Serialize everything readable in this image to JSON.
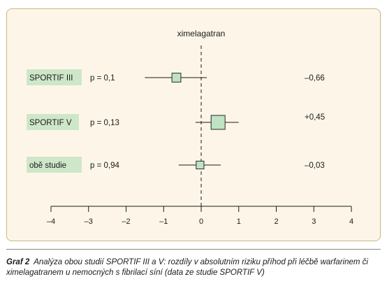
{
  "chart_data": {
    "type": "forest",
    "title": "ximelagatran",
    "xlim": [
      -4,
      4
    ],
    "xticks": [
      -4,
      -3,
      -2,
      -1,
      0,
      1,
      2,
      3,
      4
    ],
    "xtick_labels": [
      "–4",
      "–3",
      "–2",
      "–1",
      "0",
      "1",
      "2",
      "3",
      "4"
    ],
    "reference_line": 0,
    "rows": [
      {
        "label": "SPORTIF III",
        "p_text": "p = 0,1",
        "estimate": -0.66,
        "ci": [
          -1.5,
          0.15
        ],
        "weight": 0.8,
        "value_text": "–0,66"
      },
      {
        "label": "SPORTIF V",
        "p_text": "p = 0,13",
        "estimate": 0.45,
        "ci": [
          -0.15,
          1.0
        ],
        "weight": 1.25,
        "value_text": "+0,45"
      },
      {
        "label": "obě studie",
        "p_text": "p = 0,94",
        "estimate": -0.03,
        "ci": [
          -0.6,
          0.52
        ],
        "weight": 0.7,
        "value_text": "–0,03"
      }
    ]
  },
  "caption": {
    "prefix": "Graf 2",
    "text": "Analýza obou studií SPORTIF III a V: rozdíly v absolutním riziku příhod při léčbě warfarinem či ximelagatranem u nemocných s fibrilací síní (data ze studie SPORTIF V)"
  },
  "colors": {
    "label_box": "#cfe7c9",
    "marker_fill": "#bfe3c4",
    "marker_edge": "#2a2a2a",
    "frame_bg": "#fdf6e8",
    "frame_border": "#c9b58a"
  }
}
